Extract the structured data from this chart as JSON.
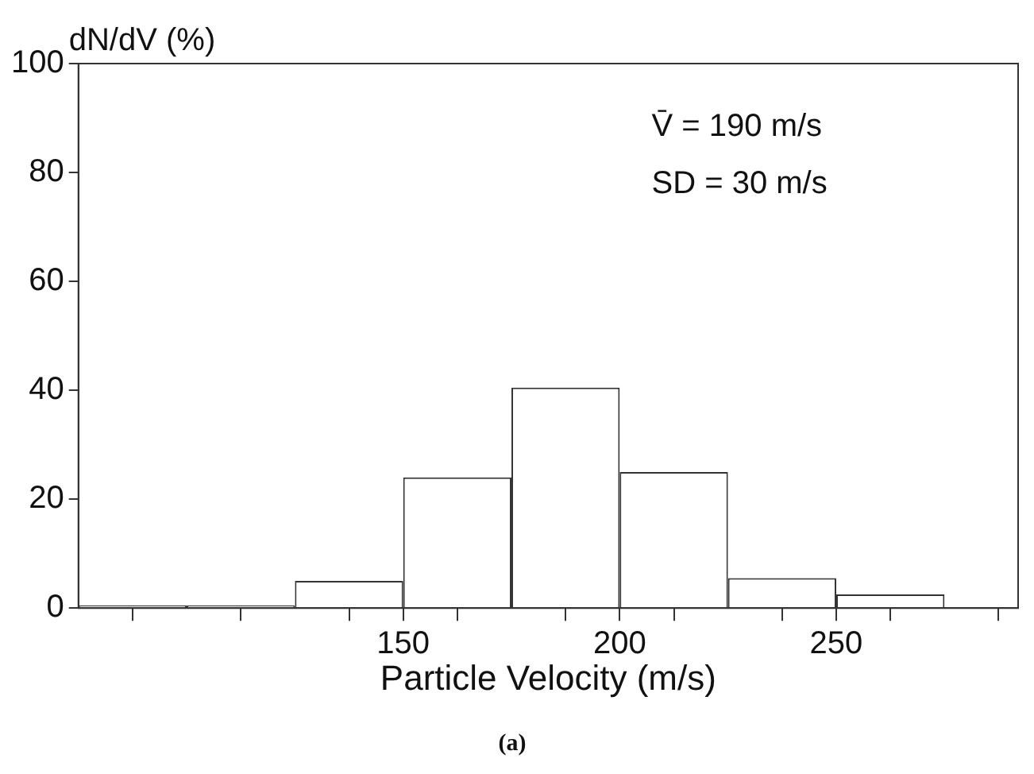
{
  "chart_data": {
    "type": "histogram",
    "title": "(a)",
    "xlabel": "Particle Velocity (m/s)",
    "ylabel": "dN/dV (%)",
    "annotations": [
      "V̄ = 190 m/s",
      "SD = 30 m/s"
    ],
    "bins": [
      75,
      100,
      125,
      150,
      175,
      200,
      225,
      250,
      275
    ],
    "values": [
      0.5,
      0.5,
      5,
      24,
      40.5,
      25,
      5.5,
      2.5
    ],
    "color": "#ffffff",
    "xlim": [
      75,
      292
    ],
    "xticks": [
      {
        "value": 87.5,
        "label": null
      },
      {
        "value": 112.5,
        "label": null
      },
      {
        "value": 137.5,
        "label": null
      },
      150,
      {
        "value": 162.5,
        "label": null
      },
      {
        "value": 187.5,
        "label": null
      },
      200,
      {
        "value": 212.5,
        "label": null
      },
      {
        "value": 237.5,
        "label": null
      },
      250,
      {
        "value": 262.5,
        "label": null
      },
      {
        "value": 287.5,
        "label": null
      }
    ],
    "ylim": [
      0,
      100
    ],
    "yticks": [
      0,
      20,
      40,
      60,
      80,
      100
    ],
    "grid": false,
    "legend": false
  }
}
